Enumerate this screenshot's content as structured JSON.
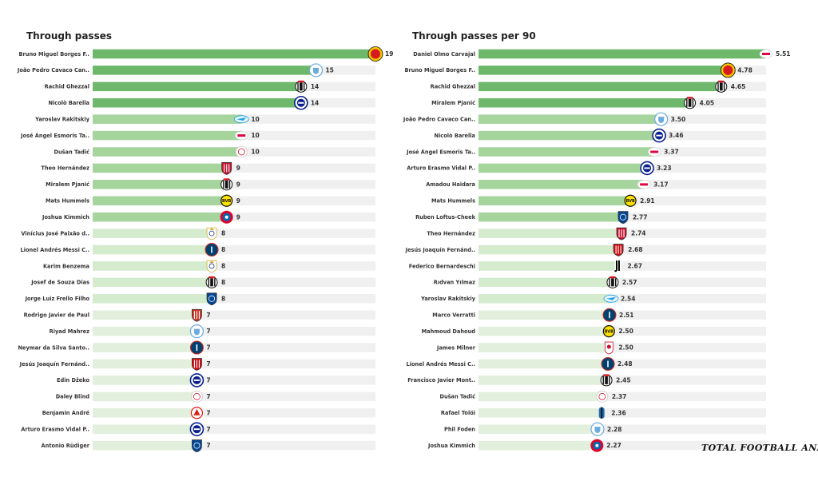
{
  "watermark": "TOTAL FOOTBALL ANALYSIS",
  "colors": {
    "bar_strong": "#6db86b",
    "bar_mid": "#a6d49d",
    "bar_light": "#d5ebce",
    "bar_faint": "#e2efdd",
    "bar_track": "#f0f0f0"
  },
  "club_colors": {
    "manutd": "#d71920",
    "mancity": "#6cabdd",
    "besiktas": "#111111",
    "inter": "#0a1f8f",
    "zenit": "#1fa0e8",
    "leipzig": "#dd0741",
    "ajax": "#d2122e",
    "milan": "#c8102e",
    "dortmund": "#fde100",
    "bayern": "#dc052d",
    "realmadrid": "#d4af37",
    "psg": "#004170",
    "chelsea": "#034694",
    "atletico": "#cb3524",
    "sevilla": "#d20a11",
    "lille": "#e01e13",
    "juventus": "#000000",
    "liverpool": "#c8102e",
    "atalanta": "#1e71b8"
  },
  "chart_data": [
    {
      "type": "bar",
      "orientation": "horizontal",
      "title": "Through passes",
      "xlim": [
        0,
        19
      ],
      "grid": false,
      "categories": [
        "Bruno Miguel Borges F..",
        "João Pedro Cavaco Can..",
        "Rachid Ghezzal",
        "Nicolò Barella",
        "Yaroslav Rakitskiy",
        "José Ángel Esmoris Ta..",
        "Dušan Tadić",
        "Theo Hernández",
        "Miralem Pjanić",
        "Mats  Hummels",
        "Joshua Kimmich",
        "Vinícius José Paixão d..",
        "Lionel Andrés Messi C..",
        "Karim Benzema",
        "Josef de Souza Dias",
        "Jorge Luiz Frello Filho",
        "Rodrigo Javier de Paul",
        "Riyad Mahrez",
        "Neymar da Silva Santo..",
        "Jesús Joaquín Fernánd..",
        "Edin Džeko",
        "Daley Blind",
        "Benjamin André",
        "Arturo Erasmo Vidal P..",
        "Antonio Rüdiger"
      ],
      "values": [
        19,
        15,
        14,
        14,
        10,
        10,
        10,
        9,
        9,
        9,
        9,
        8,
        8,
        8,
        8,
        8,
        7,
        7,
        7,
        7,
        7,
        7,
        7,
        7,
        7
      ],
      "value_labels": [
        "19",
        "15",
        "14",
        "14",
        "10",
        "10",
        "10",
        "9",
        "9",
        "9",
        "9",
        "8",
        "8",
        "8",
        "8",
        "8",
        "7",
        "7",
        "7",
        "7",
        "7",
        "7",
        "7",
        "7",
        "7"
      ],
      "clubs": [
        "manutd",
        "mancity",
        "besiktas",
        "inter",
        "zenit",
        "leipzig",
        "ajax",
        "milan",
        "besiktas",
        "dortmund",
        "bayern",
        "realmadrid",
        "psg",
        "realmadrid",
        "besiktas",
        "chelsea",
        "atletico",
        "mancity",
        "psg",
        "sevilla",
        "inter",
        "ajax",
        "lille",
        "inter",
        "chelsea"
      ]
    },
    {
      "type": "bar",
      "orientation": "horizontal",
      "title": "Through passes per 90",
      "xlim": [
        0,
        5.51
      ],
      "grid": false,
      "categories": [
        "Daniel Olmo Carvajal",
        "Bruno Miguel Borges F..",
        "Rachid Ghezzal",
        "Miralem Pjanić",
        "João Pedro Cavaco Can..",
        "Nicolò Barella",
        "José Ángel Esmoris Ta..",
        "Arturo Erasmo Vidal P..",
        "Amadou Haidara",
        "Mats  Hummels",
        "Ruben Loftus-Cheek",
        "Theo Hernández",
        "Jesús Joaquín Fernánd..",
        "Federico Bernardeschi",
        "Rıdvan Yılmaz",
        "Yaroslav Rakitskiy",
        "Marco Verratti",
        "Mahmoud Dahoud",
        "James Milner",
        "Lionel Andrés Messi C..",
        "Francisco Javier Mont..",
        "Dušan Tadić",
        "Rafael Tolói",
        "Phil Foden",
        "Joshua Kimmich"
      ],
      "values": [
        5.51,
        4.78,
        4.65,
        4.05,
        3.5,
        3.46,
        3.37,
        3.23,
        3.17,
        2.91,
        2.77,
        2.74,
        2.68,
        2.67,
        2.57,
        2.54,
        2.51,
        2.5,
        2.5,
        2.48,
        2.45,
        2.37,
        2.36,
        2.28,
        2.27
      ],
      "value_labels": [
        "5.51",
        "4.78",
        "4.65",
        "4.05",
        "3.50",
        "3.46",
        "3.37",
        "3.23",
        "3.17",
        "2.91",
        "2.77",
        "2.74",
        "2.68",
        "2.67",
        "2.57",
        "2.54",
        "2.51",
        "2.50",
        "2.50",
        "2.48",
        "2.45",
        "2.37",
        "2.36",
        "2.28",
        "2.27"
      ],
      "clubs": [
        "leipzig",
        "manutd",
        "besiktas",
        "besiktas",
        "mancity",
        "inter",
        "leipzig",
        "inter",
        "leipzig",
        "dortmund",
        "chelsea",
        "milan",
        "sevilla",
        "juventus",
        "besiktas",
        "zenit",
        "psg",
        "dortmund",
        "liverpool",
        "psg",
        "besiktas",
        "ajax",
        "atalanta",
        "mancity",
        "bayern"
      ]
    }
  ]
}
